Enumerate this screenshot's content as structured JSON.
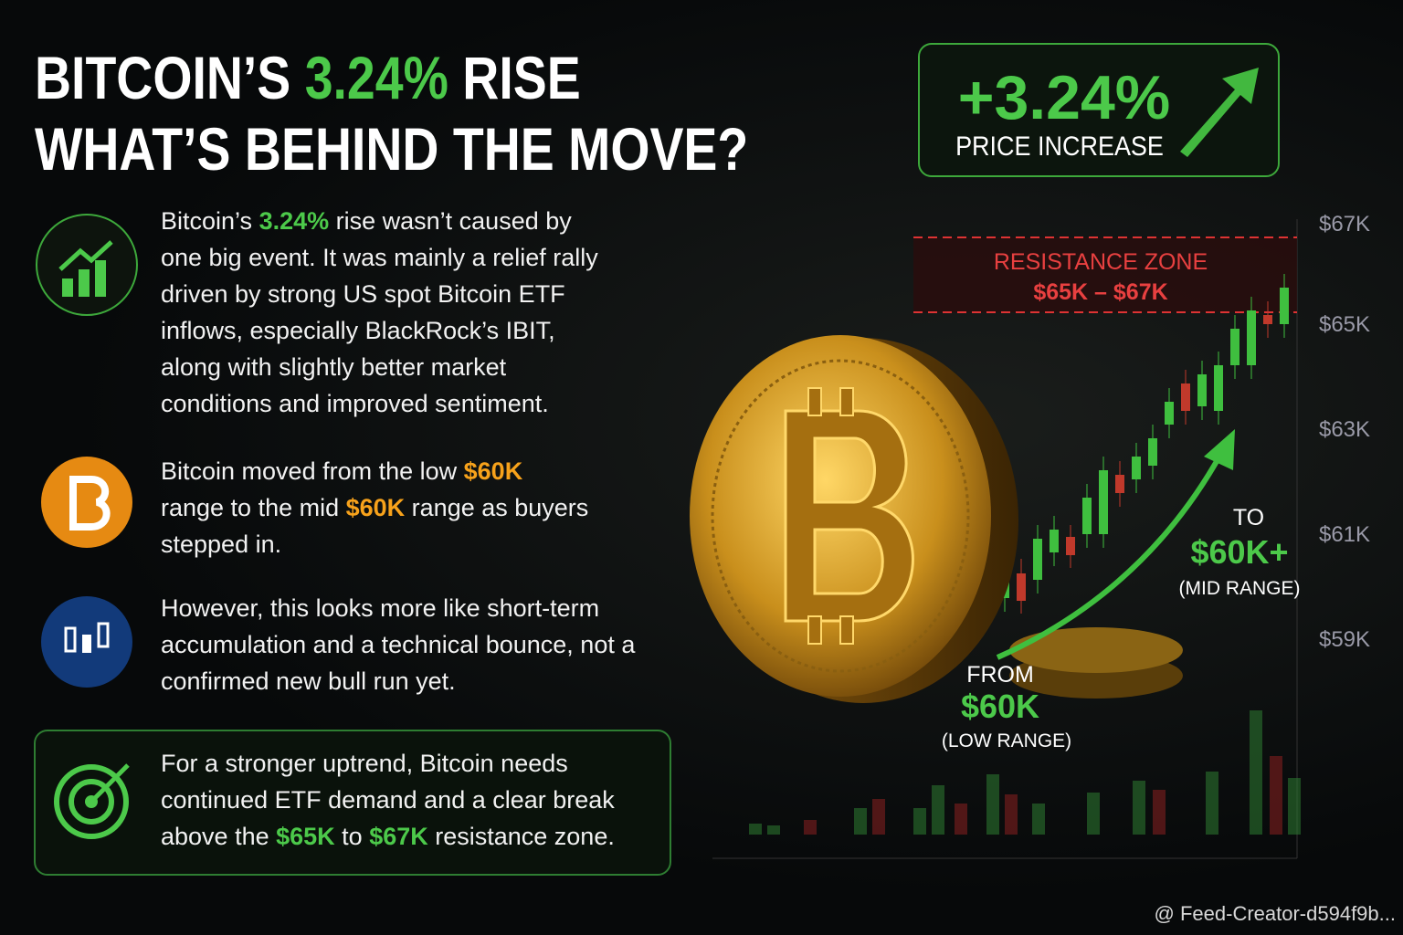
{
  "title": {
    "line1": [
      "BITCOIN’S ",
      "3.24%",
      " RISE"
    ],
    "line2": "WHAT’S BEHIND THE MOVE?"
  },
  "badge": {
    "value": "+3.24%",
    "label": "PRICE INCREASE"
  },
  "points": [
    {
      "parts": [
        "Bitcoin’s ",
        "3.24%",
        " rise wasn’t caused by one big event. It was mainly a relief rally driven by strong US spot Bitcoin ETF inflows, especially BlackRock’s IBIT, along with slightly better market conditions and improved sentiment."
      ]
    },
    {
      "parts": [
        "Bitcoin moved from the low ",
        "$60K",
        " range to the mid ",
        "$60K",
        " range as buyers stepped in."
      ]
    },
    {
      "parts": [
        "However, this looks more like short-term accumulation and a technical bounce, not a confirmed new bull run yet."
      ]
    },
    {
      "parts": [
        "For a stronger uptrend, Bitcoin needs continued ETF demand and a clear break above the ",
        "$65K",
        " to ",
        "$67K",
        " resistance zone."
      ]
    }
  ],
  "chart": {
    "y_labels": [
      "$67K",
      "$65K",
      "$63K",
      "$61K",
      "$59K"
    ],
    "resistance": {
      "title": "RESISTANCE ZONE",
      "range": "$65K – $67K"
    },
    "from": {
      "word": "FROM",
      "value": "$60K",
      "note": "(LOW RANGE)"
    },
    "to": {
      "word": "TO",
      "value": "$60K+",
      "note": "(MID RANGE)"
    }
  },
  "watermark": "@ Feed-Creator-d594f9b..."
}
